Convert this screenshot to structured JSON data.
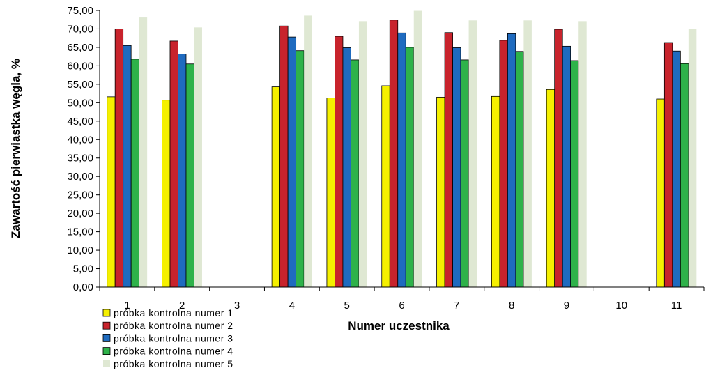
{
  "chart_data": {
    "type": "bar",
    "title": "",
    "xlabel": "Numer uczestnika",
    "ylabel": "Zawartość pierwiastka węgla, %",
    "categories": [
      "1",
      "2",
      "3",
      "4",
      "5",
      "6",
      "7",
      "8",
      "9",
      "10",
      "11"
    ],
    "y_ticks": [
      "0,00",
      "5,00",
      "10,00",
      "15,00",
      "20,00",
      "25,00",
      "30,00",
      "35,00",
      "40,00",
      "45,00",
      "50,00",
      "55,00",
      "60,00",
      "65,00",
      "70,00",
      "75,00"
    ],
    "ylim": [
      0,
      75
    ],
    "grid": false,
    "legend_position": "bottom-left",
    "series": [
      {
        "name": "próbka kontrolna numer 1",
        "color": "#f5f000",
        "values": [
          51.6,
          50.7,
          null,
          54.3,
          51.3,
          54.6,
          51.5,
          51.7,
          53.6,
          null,
          51.0
        ]
      },
      {
        "name": "próbka kontrolna numer 2",
        "color": "#c8232c",
        "values": [
          70.0,
          66.7,
          null,
          70.8,
          68.0,
          72.4,
          69.0,
          66.9,
          69.9,
          null,
          66.3
        ]
      },
      {
        "name": "próbka kontrolna numer 3",
        "color": "#1f6bbf",
        "values": [
          65.5,
          63.2,
          null,
          67.8,
          64.9,
          68.9,
          64.9,
          68.7,
          65.3,
          null,
          64.0
        ]
      },
      {
        "name": "próbka kontrolna numer 4",
        "color": "#2eb24a",
        "values": [
          61.8,
          60.5,
          null,
          64.1,
          61.6,
          65.0,
          61.6,
          63.9,
          61.4,
          null,
          60.6
        ]
      },
      {
        "name": "próbka kontrolna numer 5",
        "color": "#dfe8d3",
        "values": [
          73.1,
          70.4,
          null,
          73.6,
          72.1,
          74.9,
          72.3,
          72.3,
          72.1,
          null,
          70.0
        ]
      }
    ]
  }
}
